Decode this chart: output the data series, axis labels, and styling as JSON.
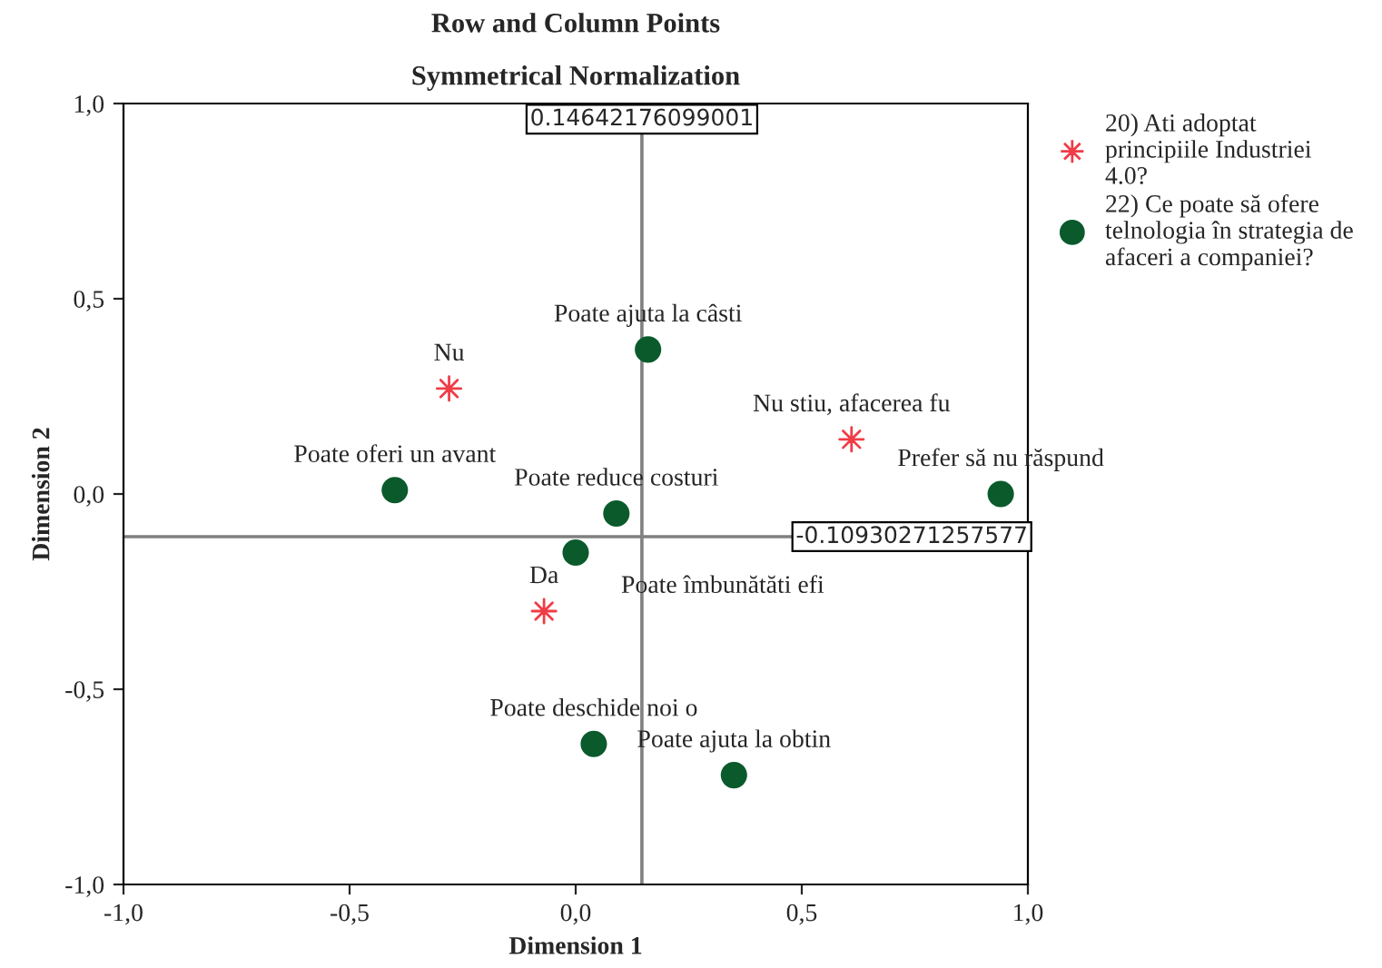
{
  "chart_data": {
    "type": "scatter",
    "title": "Row and Column Points",
    "subtitle": "Symmetrical Normalization",
    "xlabel": "Dimension 1",
    "ylabel": "Dimension 2",
    "series": [
      {
        "name": "20) Ati adoptat principiile Industriei 4.0?",
        "color": "#f03c46",
        "marker": "star",
        "x": [
          -0.28,
          -0.07,
          0.61
        ],
        "values": [
          0.27,
          -0.3,
          0.14
        ]
      },
      {
        "name": "22) Ce poate să ofere telnologia în strategia de afaceri a companiei?",
        "color": "#0a5a2c",
        "marker": "circle",
        "x": [
          0.16,
          -0.4,
          0.09,
          0.94,
          0.0,
          0.04,
          0.35
        ],
        "values": [
          0.37,
          0.01,
          -0.05,
          0.0,
          -0.15,
          -0.64,
          -0.72
        ]
      }
    ],
    "annotations": [
      {
        "text": "Nu",
        "x": -0.28,
        "y": 0.27
      },
      {
        "text": "Da",
        "x": -0.07,
        "y": -0.3
      },
      {
        "text": "Nu stiu, afacerea fu",
        "x": 0.61,
        "y": 0.14
      },
      {
        "text": "Poate ajuta la câsti",
        "x": 0.16,
        "y": 0.37
      },
      {
        "text": "Poate oferi un avant",
        "x": -0.4,
        "y": 0.01
      },
      {
        "text": "Poate reduce costuri",
        "x": 0.09,
        "y": -0.05
      },
      {
        "text": "Prefer să nu răspund",
        "x": 0.94,
        "y": 0.0
      },
      {
        "text": "Poate îmbunătăti efi",
        "x": 0.0,
        "y": -0.15
      },
      {
        "text": "Poate deschide noi o",
        "x": 0.04,
        "y": -0.64
      },
      {
        "text": "Poate ajuta la obtin",
        "x": 0.35,
        "y": -0.72
      }
    ],
    "ref_lines": [
      {
        "axis": "x",
        "value": 0.14642176099001,
        "label": "0.14642176099001",
        "color": "#808080"
      },
      {
        "axis": "y",
        "value": -0.10930271257577,
        "label": "-0.10930271257577",
        "color": "#808080"
      }
    ],
    "xlim": [
      -1.0,
      1.0
    ],
    "ylim": [
      -1.0,
      1.0
    ],
    "xticks": [
      {
        "value": -1.0,
        "label": "-1,0"
      },
      {
        "value": -0.5,
        "label": "-0,5"
      },
      {
        "value": 0.0,
        "label": "0,0"
      },
      {
        "value": 0.5,
        "label": "0,5"
      },
      {
        "value": 1.0,
        "label": "1,0"
      }
    ],
    "yticks": [
      {
        "value": -1.0,
        "label": "-1,0"
      },
      {
        "value": -0.5,
        "label": "-0,5"
      },
      {
        "value": 0.0,
        "label": "0,0"
      },
      {
        "value": 0.5,
        "label": "0,5"
      },
      {
        "value": 1.0,
        "label": "1,0"
      }
    ],
    "grid": false,
    "legend": "top right"
  }
}
